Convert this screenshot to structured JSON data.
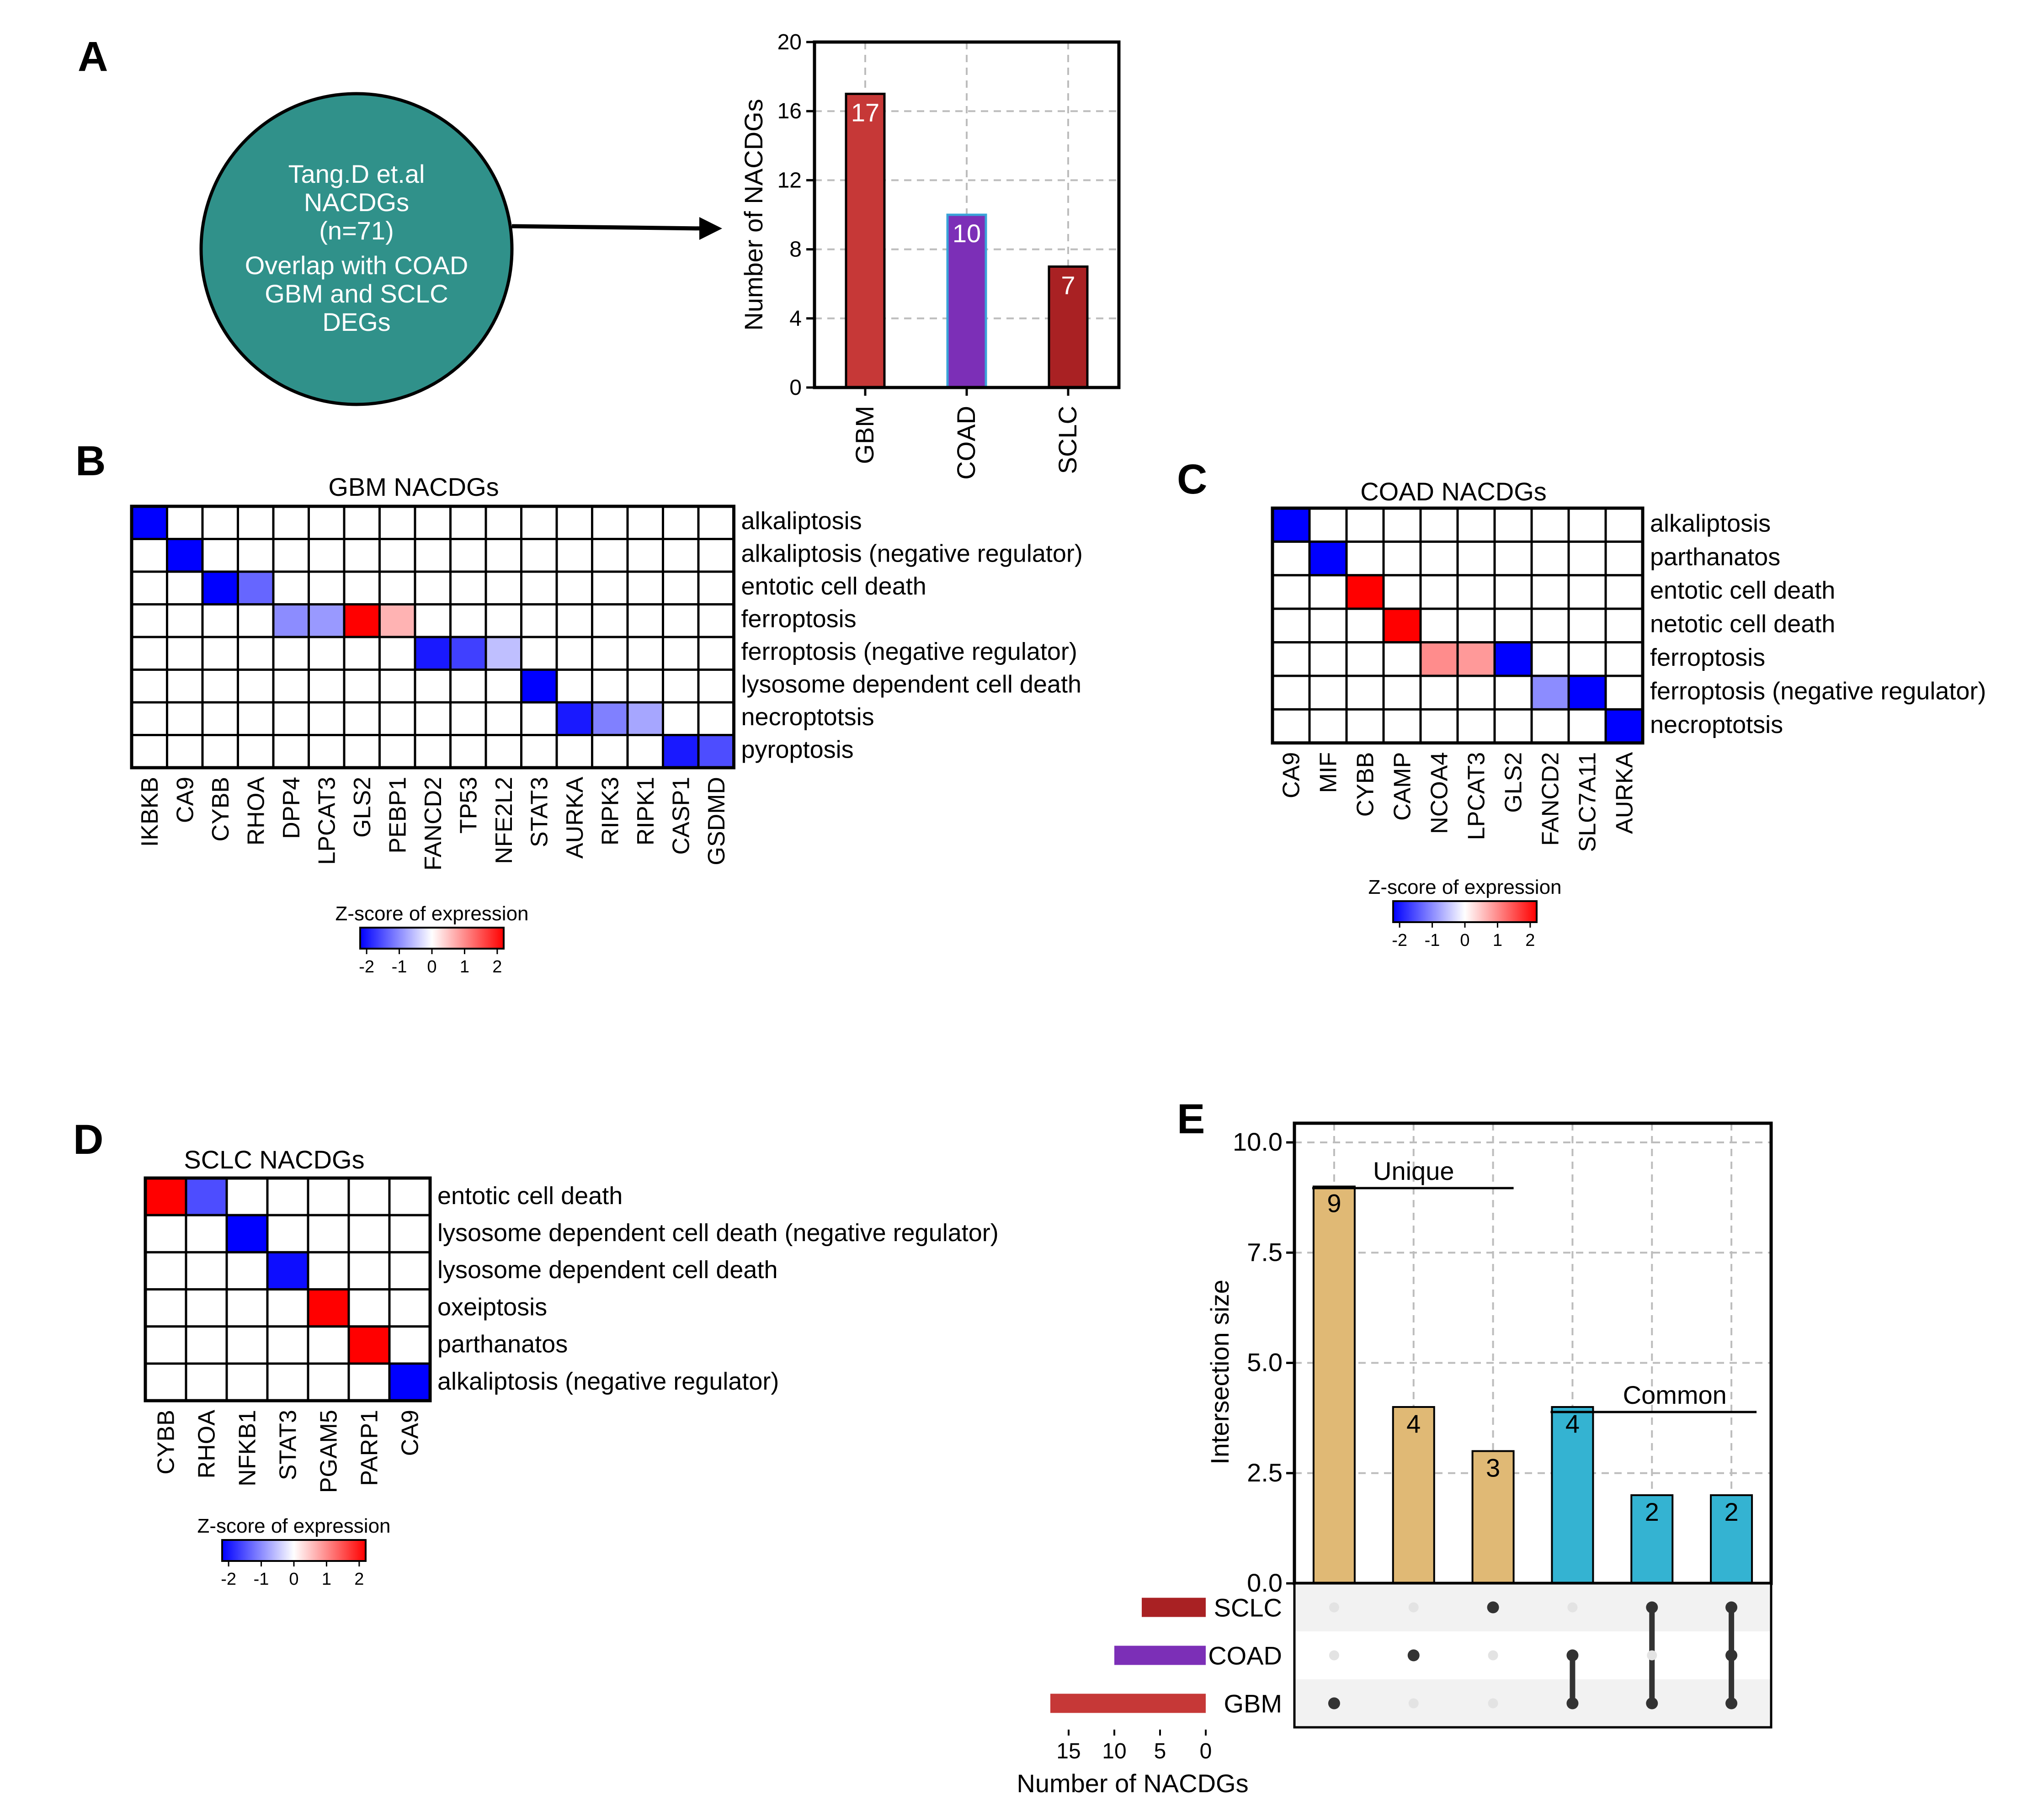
{
  "panel_labels": {
    "a": "A",
    "b": "B",
    "c": "C",
    "d": "D",
    "e": "E"
  },
  "circle": {
    "lines": [
      "Tang.D et.al",
      "NACDGs",
      "(n=71)",
      "Overlap with COAD",
      "GBM and SCLC",
      "DEGs"
    ],
    "fill": "#30918a"
  },
  "legend": {
    "title": "Z-score of expression",
    "ticks": [
      "-2",
      "-1",
      "0",
      "1",
      "2"
    ]
  },
  "chart_data": [
    {
      "id": "A",
      "type": "bar",
      "categories": [
        "GBM",
        "COAD",
        "SCLC"
      ],
      "values": [
        17,
        10,
        7
      ],
      "data_labels": [
        "17",
        "10",
        "7"
      ],
      "colors": [
        "#c63837",
        "#7c2fb7",
        "#a92123"
      ],
      "ylabel": "Number of NACDGs",
      "ylim": [
        0,
        20
      ],
      "yticks": [
        "0",
        "4",
        "8",
        "12",
        "16",
        "20"
      ],
      "grid": true
    },
    {
      "id": "B",
      "type": "heatmap",
      "title": "GBM NACDGs",
      "columns": [
        "IKBKB",
        "CA9",
        "CYBB",
        "RHOA",
        "DPP4",
        "LPCAT3",
        "GLS2",
        "PEBP1",
        "FANCD2",
        "TP53",
        "NFE2L2",
        "STAT3",
        "AURKA",
        "RIPK3",
        "RIPK1",
        "CASP1",
        "GSDMD"
      ],
      "rows": [
        "alkaliptosis",
        "alkaliptosis (negative regulator)",
        "entotic cell death",
        "ferroptosis",
        "ferroptosis (negative regulator)",
        "lysosome dependent cell death",
        "necroptotsis",
        "pyroptosis"
      ],
      "cells": [
        [
          0,
          0,
          -2
        ],
        [
          1,
          1,
          -2
        ],
        [
          2,
          2,
          -2
        ],
        [
          2,
          3,
          -1.2
        ],
        [
          3,
          4,
          -0.9
        ],
        [
          3,
          5,
          -0.8
        ],
        [
          3,
          6,
          2
        ],
        [
          3,
          7,
          0.6
        ],
        [
          4,
          8,
          -1.8
        ],
        [
          4,
          9,
          -1.5
        ],
        [
          4,
          10,
          -0.5
        ],
        [
          5,
          11,
          -2
        ],
        [
          6,
          12,
          -1.8
        ],
        [
          6,
          13,
          -1.0
        ],
        [
          6,
          14,
          -0.7
        ],
        [
          7,
          15,
          -1.8
        ],
        [
          7,
          16,
          -1.4
        ]
      ],
      "zlim": [
        -2,
        2
      ]
    },
    {
      "id": "C",
      "type": "heatmap",
      "title": "COAD NACDGs",
      "columns": [
        "CA9",
        "MIF",
        "CYBB",
        "CAMP",
        "NCOA4",
        "LPCAT3",
        "GLS2",
        "FANCD2",
        "SLC7A11",
        "AURKA"
      ],
      "rows": [
        "alkaliptosis",
        "parthanatos",
        "entotic cell death",
        "netotic cell death",
        "ferroptosis",
        "ferroptosis (negative regulator)",
        "necroptotsis"
      ],
      "cells": [
        [
          0,
          0,
          -2
        ],
        [
          1,
          1,
          -2
        ],
        [
          2,
          2,
          2
        ],
        [
          3,
          3,
          2
        ],
        [
          4,
          4,
          0.9
        ],
        [
          4,
          5,
          0.8
        ],
        [
          4,
          6,
          -2
        ],
        [
          5,
          7,
          -0.9
        ],
        [
          5,
          8,
          -2
        ],
        [
          6,
          9,
          -2
        ]
      ],
      "zlim": [
        -2,
        2
      ]
    },
    {
      "id": "D",
      "type": "heatmap",
      "title": "SCLC NACDGs",
      "columns": [
        "CYBB",
        "RHOA",
        "NFKB1",
        "STAT3",
        "PGAM5",
        "PARP1",
        "CA9"
      ],
      "rows": [
        "entotic cell death",
        "lysosome dependent cell death (negative regulator)",
        "lysosome dependent cell death",
        "oxeiptosis",
        "parthanatos",
        "alkaliptosis (negative regulator)"
      ],
      "cells": [
        [
          0,
          0,
          2
        ],
        [
          0,
          1,
          -1.4
        ],
        [
          1,
          2,
          -2
        ],
        [
          2,
          3,
          -1.9
        ],
        [
          3,
          4,
          2
        ],
        [
          4,
          5,
          2
        ],
        [
          5,
          6,
          -2
        ]
      ],
      "zlim": [
        -2,
        2
      ]
    },
    {
      "id": "E",
      "type": "bar",
      "subtype": "upset",
      "ylabel": "Intersection size",
      "ylim": [
        0,
        10
      ],
      "yticks": [
        "0.0",
        "2.5",
        "5.0",
        "7.5",
        "10.0"
      ],
      "values": [
        9,
        4,
        3,
        4,
        2,
        2
      ],
      "data_labels": [
        "9",
        "4",
        "3",
        "4",
        "2",
        "2"
      ],
      "bar_colors": [
        "#e0b975",
        "#e0b975",
        "#e0b975",
        "#34b3d2",
        "#34b3d2",
        "#34b3d2"
      ],
      "sets": [
        "SCLC",
        "COAD",
        "GBM"
      ],
      "set_sizes": [
        7,
        10,
        17
      ],
      "set_colors": [
        "#a92123",
        "#7c2fb7",
        "#c63837"
      ],
      "membership": [
        [
          "GBM"
        ],
        [
          "COAD"
        ],
        [
          "SCLC"
        ],
        [
          "COAD",
          "GBM"
        ],
        [
          "SCLC",
          "GBM"
        ],
        [
          "SCLC",
          "COAD",
          "GBM"
        ]
      ],
      "set_xlabel": "Number of NACDGs",
      "set_xticks": [
        "15",
        "10",
        "5",
        "0"
      ],
      "set_xlim": [
        0,
        18
      ],
      "annotations": {
        "unique": "Unique",
        "common": "Common"
      },
      "grid": true
    }
  ]
}
